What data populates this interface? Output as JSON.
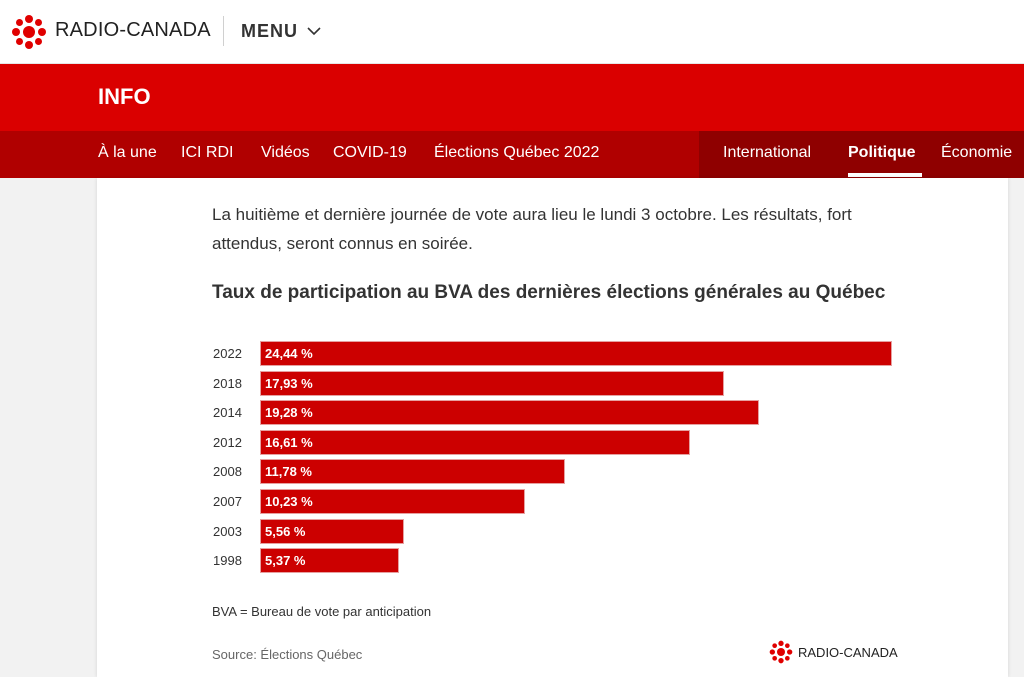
{
  "header": {
    "brand": "RADIO-CANADA",
    "menu_label": "MENU"
  },
  "section": {
    "title": "INFO"
  },
  "nav": {
    "items": [
      {
        "label": "À la une"
      },
      {
        "label": "ICI RDI"
      },
      {
        "label": "Vidéos"
      },
      {
        "label": "COVID-19"
      },
      {
        "label": "Élections Québec 2022"
      },
      {
        "label": "International"
      },
      {
        "label": "Politique",
        "active": true
      },
      {
        "label": "Économie"
      }
    ]
  },
  "article": {
    "lead": "La huitième et dernière journée de vote aura lieu le lundi 3 octobre. Les résultats, fort attendus, seront connus en soirée."
  },
  "chart_data": {
    "type": "bar",
    "orientation": "horizontal",
    "title": "Taux de participation au BVA des dernières élections générales au Québec",
    "categories": [
      "2022",
      "2018",
      "2014",
      "2012",
      "2008",
      "2007",
      "2003",
      "1998"
    ],
    "values": [
      24.44,
      17.93,
      19.28,
      16.61,
      11.78,
      10.23,
      5.56,
      5.37
    ],
    "value_labels": [
      "24,44 %",
      "17,93 %",
      "19,28 %",
      "16,61 %",
      "11,78 %",
      "10,23 %",
      "5,56 %",
      "5,37 %"
    ],
    "unit": "%",
    "xlabel": "",
    "ylabel": "",
    "xlim": [
      0,
      24.44
    ],
    "grid": false,
    "bar_color": "#cc0000",
    "note": "BVA = Bureau de vote par anticipation",
    "source": "Source: Élections Québec",
    "credit": "RADIO-CANADA"
  },
  "colors": {
    "brand_red": "#da0000",
    "nav_red": "#b00000",
    "nav_dark": "#8f0000"
  }
}
